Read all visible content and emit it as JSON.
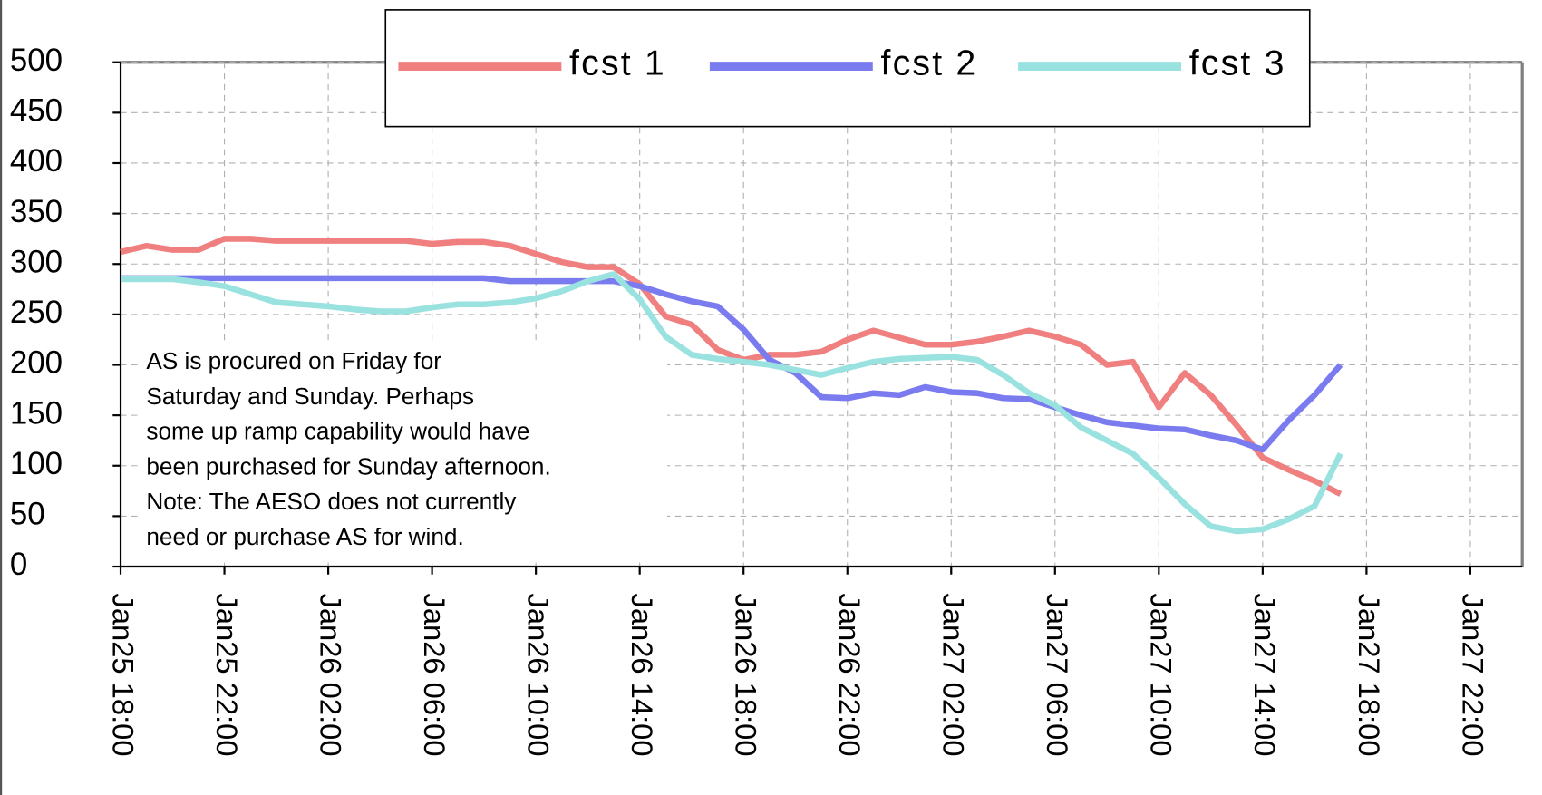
{
  "chart_data": {
    "type": "line",
    "categories": [
      "Jan25 18:00",
      null,
      null,
      null,
      "Jan25 22:00",
      null,
      null,
      null,
      "Jan26 02:00",
      null,
      null,
      null,
      "Jan26 06:00",
      null,
      null,
      null,
      "Jan26 10:00",
      null,
      null,
      null,
      "Jan26 14:00",
      null,
      null,
      null,
      "Jan26 18:00",
      null,
      null,
      null,
      "Jan26 22:00",
      null,
      null,
      null,
      "Jan27 02:00",
      null,
      null,
      null,
      "Jan27 06:00",
      null,
      null,
      null,
      "Jan27 10:00",
      null,
      null,
      null,
      "Jan27 14:00",
      null,
      null,
      null,
      "Jan27 18:00",
      null,
      null,
      null,
      "Jan27 22:00",
      null,
      null
    ],
    "series": [
      {
        "name": "fcst 1",
        "color": "#f08080",
        "values": [
          312,
          318,
          314,
          314,
          325,
          325,
          323,
          323,
          323,
          323,
          323,
          323,
          320,
          322,
          322,
          318,
          310,
          302,
          297,
          297,
          280,
          248,
          240,
          215,
          205,
          210,
          210,
          213,
          225,
          234,
          227,
          220,
          220,
          223,
          228,
          234,
          228,
          220,
          200,
          203,
          158,
          192,
          170,
          140,
          108,
          96,
          85,
          72,
          null,
          null,
          null,
          null,
          null,
          null,
          null
        ]
      },
      {
        "name": "fcst 2",
        "color": "#7b7bf0",
        "values": [
          286,
          286,
          286,
          286,
          286,
          286,
          286,
          286,
          286,
          286,
          286,
          286,
          286,
          286,
          286,
          283,
          283,
          283,
          283,
          283,
          278,
          270,
          263,
          258,
          235,
          205,
          192,
          168,
          167,
          172,
          170,
          178,
          173,
          172,
          167,
          166,
          158,
          150,
          143,
          140,
          137,
          136,
          130,
          125,
          116,
          145,
          170,
          200,
          null,
          null,
          null,
          null,
          null,
          null,
          null
        ]
      },
      {
        "name": "fcst 3",
        "color": "#9ae2e0",
        "values": [
          285,
          285,
          285,
          282,
          278,
          270,
          262,
          260,
          258,
          255,
          253,
          253,
          257,
          260,
          260,
          262,
          266,
          273,
          283,
          290,
          265,
          228,
          210,
          206,
          203,
          200,
          195,
          190,
          197,
          203,
          206,
          207,
          208,
          205,
          190,
          172,
          160,
          138,
          125,
          112,
          88,
          62,
          40,
          35,
          37,
          47,
          60,
          112,
          null,
          null,
          null,
          null,
          null,
          null,
          null
        ]
      }
    ],
    "ylim": [
      0,
      500
    ],
    "yticks": [
      0,
      50,
      100,
      150,
      200,
      250,
      300,
      350,
      400,
      450,
      500
    ],
    "grid": true,
    "annotation": [
      "AS is procured on Friday for",
      "Saturday and Sunday.  Perhaps",
      "some up ramp capability would have",
      "been purchased for Sunday afternoon.",
      "Note:  The AESO does not currently",
      "need or purchase AS for wind."
    ],
    "legend": "top"
  }
}
